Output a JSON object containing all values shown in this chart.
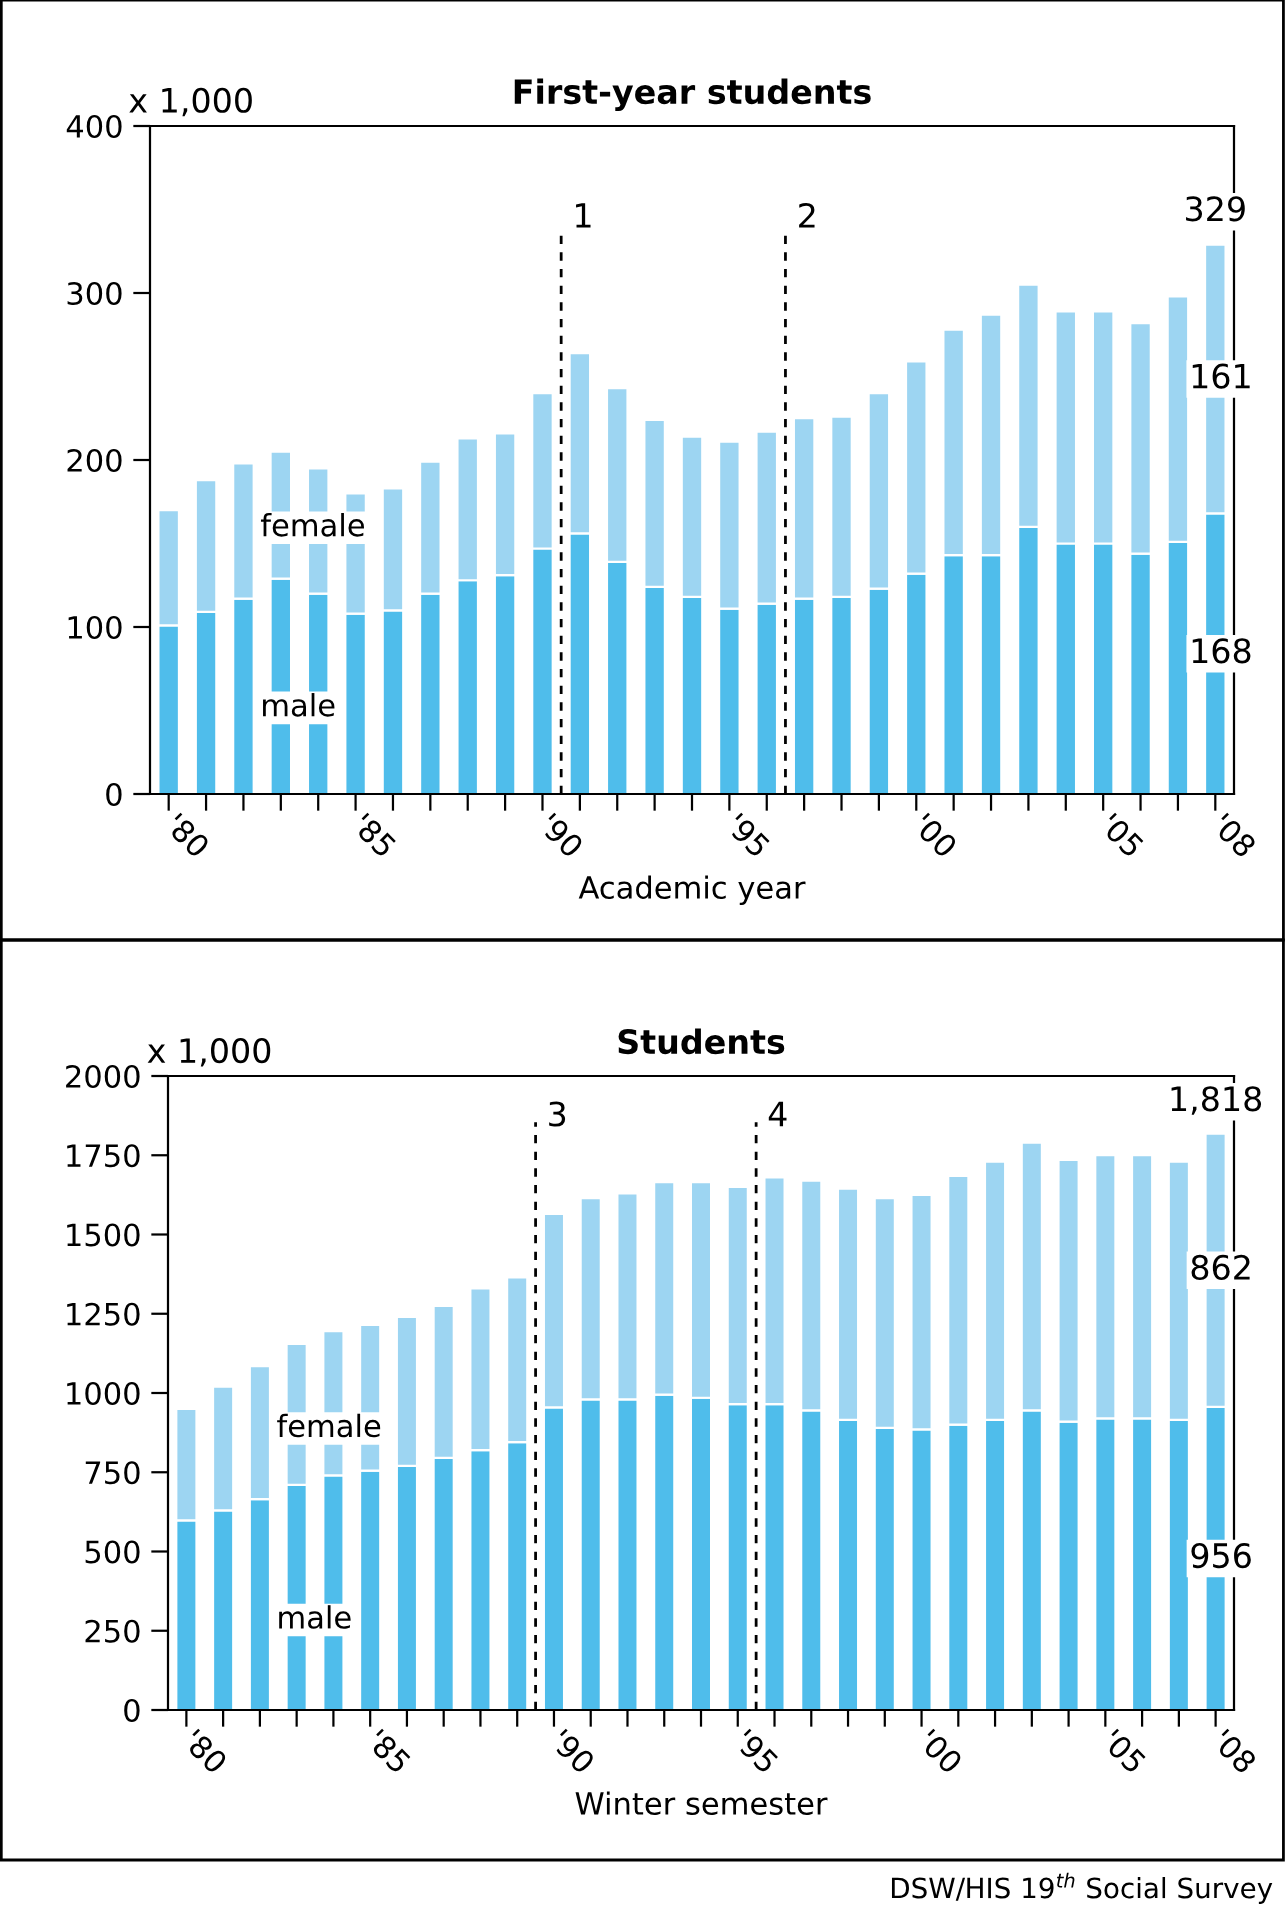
{
  "chart_data": [
    {
      "type": "bar",
      "stacked": true,
      "title": "First-year students",
      "xlabel": "Academic year",
      "ylabel": "x 1,000",
      "x": [
        1980,
        1981,
        1982,
        1983,
        1984,
        1985,
        1986,
        1987,
        1988,
        1989,
        1990,
        1991,
        1992,
        1993,
        1994,
        1995,
        1996,
        1997,
        1998,
        1999,
        2000,
        2001,
        2002,
        2003,
        2004,
        2005,
        2006,
        2007,
        2008
      ],
      "series": [
        {
          "name": "male",
          "color": "#4fbdeb",
          "values": [
            101,
            109,
            117,
            129,
            120,
            108,
            110,
            120,
            128,
            131,
            147,
            156,
            139,
            124,
            118,
            111,
            114,
            117,
            118,
            123,
            132,
            143,
            143,
            160,
            150,
            150,
            144,
            151,
            168
          ],
          "value_labels": [
            null,
            null,
            null,
            null,
            null,
            null,
            null,
            null,
            null,
            null,
            null,
            null,
            null,
            null,
            null,
            null,
            null,
            null,
            null,
            null,
            null,
            null,
            null,
            null,
            null,
            null,
            null,
            null,
            "168"
          ]
        },
        {
          "name": "female",
          "color": "#9dd5f2",
          "values": [
            69,
            79,
            81,
            76,
            75,
            72,
            73,
            79,
            85,
            85,
            93,
            108,
            104,
            100,
            96,
            100,
            103,
            108,
            108,
            117,
            127,
            135,
            144,
            145,
            139,
            139,
            138,
            147,
            161
          ],
          "value_labels": [
            null,
            null,
            null,
            null,
            null,
            null,
            null,
            null,
            null,
            null,
            null,
            null,
            null,
            null,
            null,
            null,
            null,
            null,
            null,
            null,
            null,
            null,
            null,
            null,
            null,
            null,
            null,
            null,
            "161"
          ]
        }
      ],
      "totals": [
        null,
        null,
        null,
        null,
        null,
        null,
        null,
        null,
        null,
        null,
        null,
        null,
        null,
        null,
        null,
        null,
        null,
        null,
        null,
        null,
        null,
        null,
        null,
        null,
        null,
        null,
        null,
        null,
        "329"
      ],
      "xlim": [
        1979.5,
        2008.5
      ],
      "ylim": [
        0,
        400
      ],
      "yticks": [
        0,
        100,
        200,
        300,
        400
      ],
      "xticks": [
        {
          "value": 1980,
          "label": "'80"
        },
        {
          "value": 1981,
          "label": null
        },
        {
          "value": 1982,
          "label": null
        },
        {
          "value": 1983,
          "label": null
        },
        {
          "value": 1984,
          "label": null
        },
        {
          "value": 1985,
          "label": "'85"
        },
        {
          "value": 1986,
          "label": null
        },
        {
          "value": 1987,
          "label": null
        },
        {
          "value": 1988,
          "label": null
        },
        {
          "value": 1989,
          "label": null
        },
        {
          "value": 1990,
          "label": "'90"
        },
        {
          "value": 1991,
          "label": null
        },
        {
          "value": 1992,
          "label": null
        },
        {
          "value": 1993,
          "label": null
        },
        {
          "value": 1994,
          "label": null
        },
        {
          "value": 1995,
          "label": "'95"
        },
        {
          "value": 1996,
          "label": null
        },
        {
          "value": 1997,
          "label": null
        },
        {
          "value": 1998,
          "label": null
        },
        {
          "value": 1999,
          "label": null
        },
        {
          "value": 2000,
          "label": "'00"
        },
        {
          "value": 2001,
          "label": null
        },
        {
          "value": 2002,
          "label": null
        },
        {
          "value": 2003,
          "label": null
        },
        {
          "value": 2004,
          "label": null
        },
        {
          "value": 2005,
          "label": "'05"
        },
        {
          "value": 2006,
          "label": null
        },
        {
          "value": 2007,
          "label": null
        },
        {
          "value": 2008,
          "label": "'08"
        }
      ],
      "ref_lines": [
        {
          "axis": "x",
          "value": 1990.5,
          "color": "#000000",
          "line_style": "dashed"
        },
        {
          "axis": "x",
          "value": 1996.5,
          "color": "#000000",
          "line_style": "dashed"
        }
      ],
      "annotations": [
        {
          "text": "1",
          "x": 1990.5,
          "y": 335
        },
        {
          "text": "2",
          "x": 1996.5,
          "y": 335
        }
      ],
      "grid": false,
      "legend": false
    },
    {
      "type": "bar",
      "stacked": true,
      "title": "Students",
      "xlabel": "Winter semester",
      "ylabel": "x 1,000",
      "x": [
        1980,
        1981,
        1982,
        1983,
        1984,
        1985,
        1986,
        1987,
        1988,
        1989,
        1990,
        1991,
        1992,
        1993,
        1994,
        1995,
        1996,
        1997,
        1998,
        1999,
        2000,
        2001,
        2002,
        2003,
        2004,
        2005,
        2006,
        2007,
        2008
      ],
      "series": [
        {
          "name": "male",
          "color": "#4fbdeb",
          "values": [
            598,
            630,
            665,
            710,
            740,
            755,
            770,
            795,
            820,
            845,
            955,
            980,
            980,
            995,
            985,
            965,
            965,
            945,
            915,
            890,
            885,
            900,
            915,
            945,
            910,
            920,
            920,
            915,
            956
          ],
          "value_labels": [
            null,
            null,
            null,
            null,
            null,
            null,
            null,
            null,
            null,
            null,
            null,
            null,
            null,
            null,
            null,
            null,
            null,
            null,
            null,
            null,
            null,
            null,
            null,
            null,
            null,
            null,
            null,
            null,
            "956"
          ]
        },
        {
          "name": "female",
          "color": "#9dd5f2",
          "values": [
            352,
            390,
            420,
            445,
            455,
            460,
            470,
            480,
            510,
            520,
            610,
            635,
            650,
            670,
            680,
            685,
            715,
            725,
            730,
            725,
            740,
            785,
            815,
            845,
            825,
            830,
            830,
            815,
            862
          ],
          "value_labels": [
            null,
            null,
            null,
            null,
            null,
            null,
            null,
            null,
            null,
            null,
            null,
            null,
            null,
            null,
            null,
            null,
            null,
            null,
            null,
            null,
            null,
            null,
            null,
            null,
            null,
            null,
            null,
            null,
            "862"
          ]
        }
      ],
      "totals": [
        null,
        null,
        null,
        null,
        null,
        null,
        null,
        null,
        null,
        null,
        null,
        null,
        null,
        null,
        null,
        null,
        null,
        null,
        null,
        null,
        null,
        null,
        null,
        null,
        null,
        null,
        null,
        null,
        "1,818"
      ],
      "xlim": [
        1979.5,
        2008.5
      ],
      "ylim": [
        0,
        2000
      ],
      "yticks": [
        0,
        250,
        500,
        750,
        1000,
        1250,
        1500,
        1750,
        2000
      ],
      "xticks": [
        {
          "value": 1980,
          "label": "'80"
        },
        {
          "value": 1981,
          "label": null
        },
        {
          "value": 1982,
          "label": null
        },
        {
          "value": 1983,
          "label": null
        },
        {
          "value": 1984,
          "label": null
        },
        {
          "value": 1985,
          "label": "'85"
        },
        {
          "value": 1986,
          "label": null
        },
        {
          "value": 1987,
          "label": null
        },
        {
          "value": 1988,
          "label": null
        },
        {
          "value": 1989,
          "label": null
        },
        {
          "value": 1990,
          "label": "'90"
        },
        {
          "value": 1991,
          "label": null
        },
        {
          "value": 1992,
          "label": null
        },
        {
          "value": 1993,
          "label": null
        },
        {
          "value": 1994,
          "label": null
        },
        {
          "value": 1995,
          "label": "'95"
        },
        {
          "value": 1996,
          "label": null
        },
        {
          "value": 1997,
          "label": null
        },
        {
          "value": 1998,
          "label": null
        },
        {
          "value": 1999,
          "label": null
        },
        {
          "value": 2000,
          "label": "'00"
        },
        {
          "value": 2001,
          "label": null
        },
        {
          "value": 2002,
          "label": null
        },
        {
          "value": 2003,
          "label": null
        },
        {
          "value": 2004,
          "label": null
        },
        {
          "value": 2005,
          "label": "'05"
        },
        {
          "value": 2006,
          "label": null
        },
        {
          "value": 2007,
          "label": null
        },
        {
          "value": 2008,
          "label": "'08"
        }
      ],
      "ref_lines": [
        {
          "axis": "x",
          "value": 1989.5,
          "color": "#000000",
          "line_style": "dashed"
        },
        {
          "axis": "x",
          "value": 1995.5,
          "color": "#000000",
          "line_style": "dashed"
        }
      ],
      "annotations": [
        {
          "text": "3",
          "x": 1989.5,
          "y": 1820
        },
        {
          "text": "4",
          "x": 1995.5,
          "y": 1820
        },
        "DSW/HIS 19$^{th}$ Social Survey"
      ],
      "grid": false,
      "legend": false
    }
  ]
}
